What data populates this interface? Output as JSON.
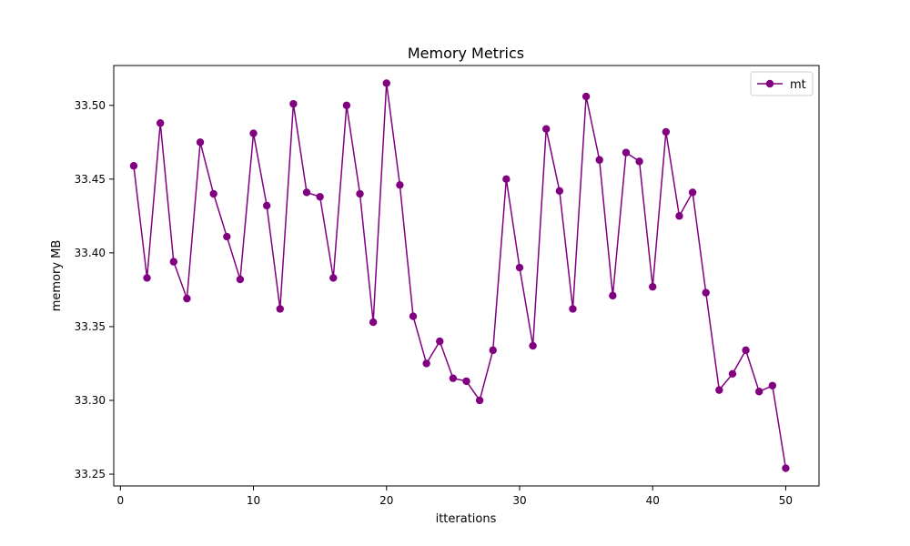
{
  "chart_data": {
    "type": "line",
    "title": "Memory Metrics",
    "xlabel": "itterations",
    "ylabel": "memory MB",
    "xlim": [
      -0.5,
      52.5
    ],
    "ylim": [
      33.242,
      33.527
    ],
    "xticks": [
      0,
      10,
      20,
      30,
      40,
      50
    ],
    "yticks": [
      33.25,
      33.3,
      33.35,
      33.4,
      33.45,
      33.5
    ],
    "xtick_labels": [
      "0",
      "10",
      "20",
      "30",
      "40",
      "50"
    ],
    "ytick_labels": [
      "33.25",
      "33.30",
      "33.35",
      "33.40",
      "33.45",
      "33.50"
    ],
    "grid": false,
    "legend_position": "top-right",
    "series": [
      {
        "name": "mt",
        "color": "#800080",
        "marker": "circle",
        "x": [
          1,
          2,
          3,
          4,
          5,
          6,
          7,
          8,
          9,
          10,
          11,
          12,
          13,
          14,
          15,
          16,
          17,
          18,
          19,
          20,
          21,
          22,
          23,
          24,
          25,
          26,
          27,
          28,
          29,
          30,
          31,
          32,
          33,
          34,
          35,
          36,
          37,
          38,
          39,
          40,
          41,
          42,
          43,
          44,
          45,
          46,
          47,
          48,
          49,
          50
        ],
        "values": [
          33.459,
          33.383,
          33.488,
          33.394,
          33.369,
          33.475,
          33.44,
          33.411,
          33.382,
          33.481,
          33.432,
          33.362,
          33.501,
          33.441,
          33.438,
          33.383,
          33.5,
          33.44,
          33.353,
          33.515,
          33.446,
          33.357,
          33.325,
          33.34,
          33.315,
          33.313,
          33.3,
          33.334,
          33.45,
          33.39,
          33.337,
          33.484,
          33.442,
          33.362,
          33.506,
          33.463,
          33.371,
          33.468,
          33.462,
          33.377,
          33.482,
          33.425,
          33.441,
          33.373,
          33.307,
          33.318,
          33.334,
          33.306,
          33.31,
          33.254
        ]
      }
    ]
  }
}
